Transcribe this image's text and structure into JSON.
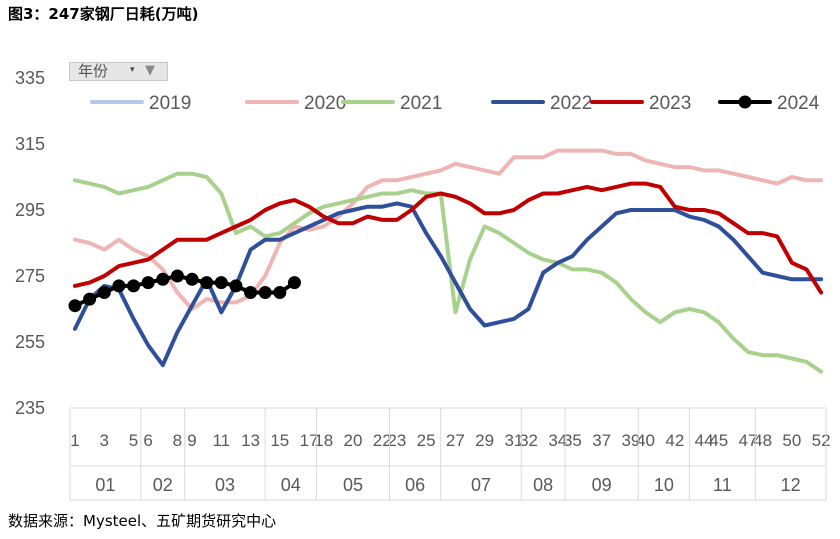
{
  "title": "图3：247家钢厂日耗(万吨)",
  "source": "数据来源：Mysteel、五矿期货研究中心",
  "filter": {
    "label": "年份",
    "arrow": "▾",
    "icon": "▼"
  },
  "chart_data": {
    "type": "line",
    "title": "图3：247家钢厂日耗(万吨)",
    "xlabel": "",
    "ylabel": "",
    "ylim": [
      235,
      335
    ],
    "yticks": [
      235,
      255,
      275,
      295,
      315,
      335
    ],
    "grid": false,
    "legend": "top",
    "x_tick_labels": [
      "1",
      "3",
      "5",
      "6",
      "8",
      "9",
      "11",
      "13",
      "15",
      "17",
      "18",
      "20",
      "22",
      "23",
      "25",
      "27",
      "29",
      "31",
      "32",
      "34",
      "35",
      "37",
      "39",
      "40",
      "42",
      "44",
      "45",
      "47",
      "48",
      "50",
      "52"
    ],
    "month_groups": [
      "01",
      "02",
      "03",
      "04",
      "05",
      "06",
      "07",
      "08",
      "09",
      "10",
      "11",
      "12"
    ],
    "series": [
      {
        "name": "2019",
        "color": "#b4c7e7",
        "width": 4,
        "x": [],
        "values": []
      },
      {
        "name": "2020",
        "color": "#efb5b5",
        "width": 4,
        "x": [
          1,
          2,
          3,
          4,
          5,
          6,
          7,
          8,
          9,
          10,
          11,
          12,
          13,
          14,
          15,
          16,
          17,
          18,
          19,
          20,
          21,
          22,
          23,
          24,
          25,
          26,
          27,
          28,
          29,
          30,
          31,
          32,
          33,
          34,
          35,
          36,
          37,
          38,
          39,
          40,
          41,
          42,
          43,
          44,
          45,
          46,
          47,
          48,
          49,
          50,
          51,
          52
        ],
        "values": [
          286,
          285,
          283,
          286,
          283,
          281,
          277,
          270,
          265,
          268,
          267,
          267,
          269,
          275,
          285,
          290,
          289,
          290,
          293,
          297,
          302,
          304,
          304,
          305,
          306,
          307,
          309,
          308,
          307,
          306,
          311,
          311,
          311,
          313,
          313,
          313,
          313,
          312,
          312,
          310,
          309,
          308,
          308,
          307,
          307,
          306,
          305,
          304,
          303,
          305,
          304,
          304
        ]
      },
      {
        "name": "2021",
        "color": "#a9d18e",
        "width": 4,
        "x": [
          1,
          2,
          3,
          4,
          5,
          6,
          7,
          8,
          9,
          10,
          11,
          12,
          13,
          14,
          15,
          16,
          17,
          18,
          19,
          20,
          21,
          22,
          23,
          24,
          25,
          26,
          27,
          28,
          29,
          30,
          31,
          32,
          33,
          34,
          35,
          36,
          37,
          38,
          39,
          40,
          41,
          42,
          43,
          44,
          45,
          46,
          47,
          48,
          49,
          50,
          51,
          52
        ],
        "values": [
          304,
          303,
          302,
          300,
          301,
          302,
          304,
          306,
          306,
          305,
          300,
          288,
          290,
          287,
          288,
          291,
          294,
          296,
          297,
          298,
          299,
          300,
          300,
          301,
          300,
          300,
          264,
          280,
          290,
          288,
          285,
          282,
          280,
          279,
          277,
          277,
          276,
          273,
          268,
          264,
          261,
          264,
          265,
          264,
          261,
          256,
          252,
          251,
          251,
          250,
          249,
          246
        ]
      },
      {
        "name": "2022",
        "color": "#2f4f9b",
        "width": 4,
        "x": [
          1,
          2,
          3,
          4,
          5,
          6,
          7,
          8,
          9,
          10,
          11,
          12,
          13,
          14,
          15,
          16,
          17,
          18,
          19,
          20,
          21,
          22,
          23,
          24,
          25,
          26,
          27,
          28,
          29,
          30,
          31,
          32,
          33,
          34,
          35,
          36,
          37,
          38,
          39,
          40,
          41,
          42,
          43,
          44,
          45,
          46,
          47,
          48,
          49,
          50,
          51,
          52
        ],
        "values": [
          259,
          268,
          272,
          271,
          262,
          254,
          248,
          258,
          266,
          274,
          264,
          272,
          283,
          286,
          286,
          288,
          290,
          292,
          294,
          295,
          296,
          296,
          297,
          296,
          288,
          281,
          273,
          265,
          260,
          261,
          262,
          265,
          276,
          279,
          281,
          286,
          290,
          294,
          295,
          295,
          295,
          295,
          293,
          292,
          290,
          286,
          281,
          276,
          275,
          274,
          274,
          274
        ]
      },
      {
        "name": "2023",
        "color": "#c00000",
        "width": 4,
        "x": [
          1,
          2,
          3,
          4,
          5,
          6,
          7,
          8,
          9,
          10,
          11,
          12,
          13,
          14,
          15,
          16,
          17,
          18,
          19,
          20,
          21,
          22,
          23,
          24,
          25,
          26,
          27,
          28,
          29,
          30,
          31,
          32,
          33,
          34,
          35,
          36,
          37,
          38,
          39,
          40,
          41,
          42,
          43,
          44,
          45,
          46,
          47,
          48,
          49,
          50,
          51,
          52
        ],
        "values": [
          272,
          273,
          275,
          278,
          279,
          280,
          283,
          286,
          286,
          286,
          288,
          290,
          292,
          295,
          297,
          298,
          296,
          293,
          291,
          291,
          293,
          292,
          292,
          295,
          299,
          300,
          299,
          297,
          294,
          294,
          295,
          298,
          300,
          300,
          301,
          302,
          301,
          302,
          303,
          303,
          302,
          296,
          295,
          295,
          294,
          291,
          288,
          288,
          287,
          279,
          277,
          270
        ]
      },
      {
        "name": "2024",
        "color": "#000000",
        "width": 4,
        "markers": true,
        "x": [
          1,
          2,
          3,
          4,
          5,
          6,
          7,
          8,
          9,
          10,
          11,
          12,
          13,
          14,
          15,
          16
        ],
        "values": [
          266,
          268,
          270,
          272,
          272,
          273,
          274,
          275,
          274,
          273,
          273,
          272,
          270,
          270,
          270,
          273
        ]
      }
    ]
  }
}
